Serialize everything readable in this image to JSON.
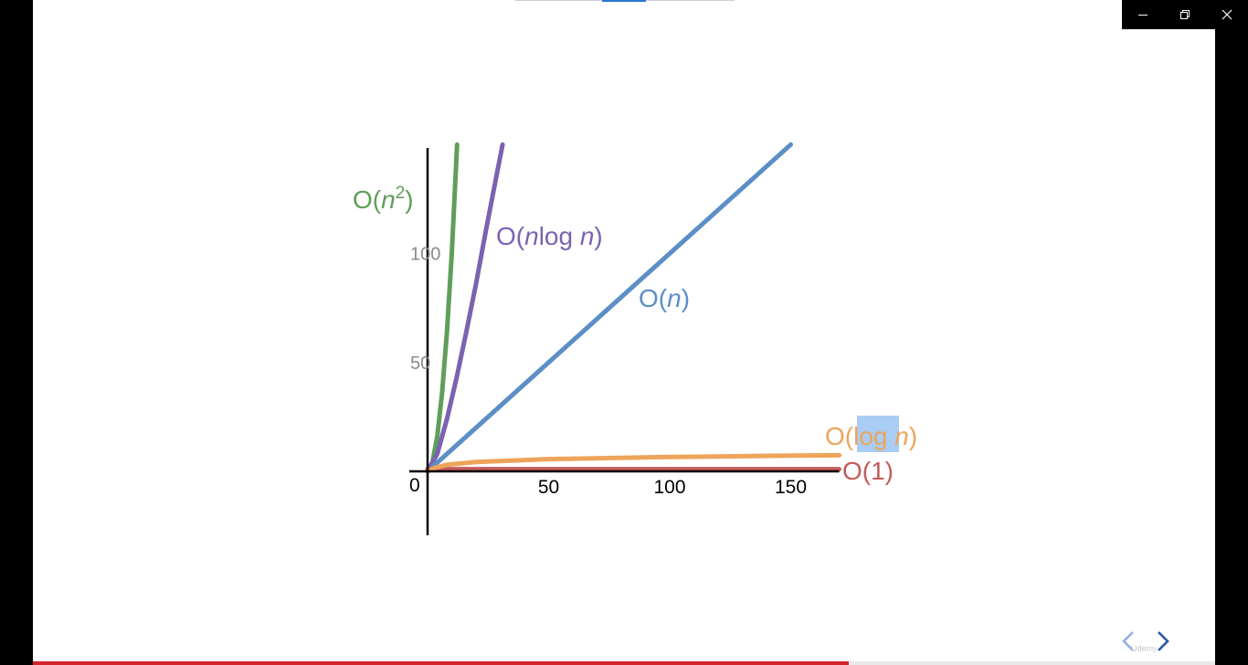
{
  "window": {
    "controls": [
      "minimize",
      "restore",
      "close"
    ]
  },
  "player": {
    "watermark": "Udemy",
    "progress": 0.69,
    "prev_icon": "chevron-left-icon",
    "next_icon": "chevron-right-icon"
  },
  "colors": {
    "quadratic": "#5f9e5a",
    "nlogn": "#7b62b0",
    "linear": "#5b8fc6",
    "log": "#eea45a",
    "constant": "#c45b5b",
    "highlight": "#a9cdf5",
    "axis": "#000000",
    "ytick": "#8a8a8a"
  },
  "chart_data": {
    "type": "line",
    "x_ticks": [
      50,
      100,
      150
    ],
    "y_ticks": [
      50,
      100
    ],
    "origin_label": "0",
    "xlim": [
      0,
      170
    ],
    "ylim": [
      0,
      150
    ],
    "series": [
      {
        "name": "O(n²)",
        "name_parts": [
          "O(",
          "n",
          "2",
          ")"
        ],
        "key": "quadratic",
        "points": [
          [
            0,
            0
          ],
          [
            2,
            4
          ],
          [
            4,
            16
          ],
          [
            6,
            36
          ],
          [
            8,
            64
          ],
          [
            10,
            100
          ],
          [
            12.2,
            150
          ]
        ]
      },
      {
        "name": "O(nlog n)",
        "name_parts": [
          "O(",
          "n",
          "log ",
          "n",
          ")"
        ],
        "key": "nlogn",
        "points": [
          [
            0,
            0
          ],
          [
            4,
            8
          ],
          [
            8,
            24
          ],
          [
            12,
            43
          ],
          [
            16,
            64
          ],
          [
            20,
            86
          ],
          [
            24,
            110
          ],
          [
            28,
            133
          ],
          [
            31,
            150
          ]
        ]
      },
      {
        "name": "O(n)",
        "name_parts": [
          "O(",
          "n",
          ")"
        ],
        "key": "linear",
        "points": [
          [
            0,
            0
          ],
          [
            150,
            150
          ]
        ]
      },
      {
        "name": "O(log n)",
        "name_parts": [
          "O(",
          "log",
          " ",
          "n",
          ")"
        ],
        "key": "log",
        "points": [
          [
            0,
            0
          ],
          [
            3,
            1.6
          ],
          [
            8,
            3.0
          ],
          [
            20,
            4.3
          ],
          [
            50,
            5.6
          ],
          [
            100,
            6.6
          ],
          [
            150,
            7.2
          ],
          [
            170,
            7.4
          ]
        ]
      },
      {
        "name": "O(1)",
        "name_parts": [
          "O(1)"
        ],
        "key": "constant",
        "points": [
          [
            0,
            1
          ],
          [
            170,
            1
          ]
        ]
      }
    ]
  }
}
